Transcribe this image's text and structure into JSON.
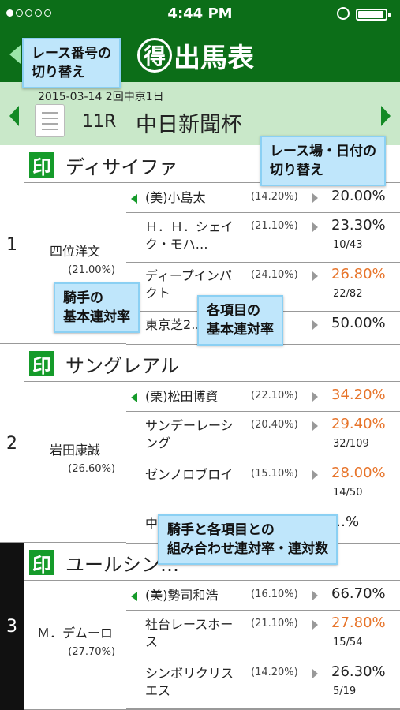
{
  "status": {
    "time": "4:44 PM",
    "battery": 0.95
  },
  "app": {
    "title": "出馬表",
    "title_circle": "得"
  },
  "race": {
    "date": "2015-03-14 2回中京1日",
    "number": "11R",
    "name": "中日新聞杯"
  },
  "entries": [
    {
      "post": "1",
      "mark": "印",
      "horse": "ディサイファ",
      "jockey": "四位洋文",
      "jockey_rate": "(21.00%)",
      "rows": [
        {
          "name": "(美)小島太",
          "rate": "(14.20%)",
          "pct": "20.00%",
          "count": "",
          "highlight": false
        },
        {
          "name": "Ｈ．Ｈ．シェイク・モハ…",
          "rate": "(21.10%)",
          "pct": "23.30%",
          "count": "10/43",
          "highlight": false
        },
        {
          "name": "ディープインパクト",
          "rate": "(24.10%)",
          "pct": "26.80%",
          "count": "22/82",
          "highlight": true
        },
        {
          "name": "東京芝2…",
          "rate": "",
          "pct": "50.00%",
          "count": "",
          "highlight": false
        }
      ]
    },
    {
      "post": "2",
      "mark": "印",
      "horse": "サングレアル",
      "jockey": "岩田康誠",
      "jockey_rate": "(26.60%)",
      "rows": [
        {
          "name": "(栗)松田博資",
          "rate": "(22.10%)",
          "pct": "34.20%",
          "count": "",
          "highlight": true
        },
        {
          "name": "サンデーレーシング",
          "rate": "(20.40%)",
          "pct": "29.40%",
          "count": "32/109",
          "highlight": true
        },
        {
          "name": "ゼンノロブロイ",
          "rate": "(15.10%)",
          "pct": "28.00%",
          "count": "14/50",
          "highlight": true
        },
        {
          "name": "中…",
          "rate": "",
          "pct": "…%",
          "count": "",
          "highlight": false
        }
      ]
    },
    {
      "post": "3",
      "mark": "印",
      "horse": "ユールシン…",
      "jockey": "Ｍ．デムーロ",
      "jockey_rate": "(27.70%)",
      "rows": [
        {
          "name": "(美)勢司和浩",
          "rate": "(16.10%)",
          "pct": "66.70%",
          "count": "",
          "highlight": false
        },
        {
          "name": "社台レースホース",
          "rate": "(21.10%)",
          "pct": "27.80%",
          "count": "15/54",
          "highlight": true
        },
        {
          "name": "シンボリクリスエス",
          "rate": "(14.20%)",
          "pct": "26.30%",
          "count": "5/19",
          "highlight": false
        }
      ]
    }
  ],
  "tips": {
    "race_switch": "レース番号の\n切り替え",
    "venue_switch": "レース場・日付の\n切り替え",
    "jockey_rate": "騎手の\n基本連対率",
    "item_rate": "各項目の\n基本連対率",
    "combo_rate": "騎手と各項目との\n組み合わせ連対率・連対数"
  },
  "colors": {
    "header_green": "#0c6e18",
    "band_green": "#c9e8c9",
    "mark_green": "#159b2a",
    "highlight": "#e7742a",
    "tip_blue": "#bfe6fb"
  }
}
